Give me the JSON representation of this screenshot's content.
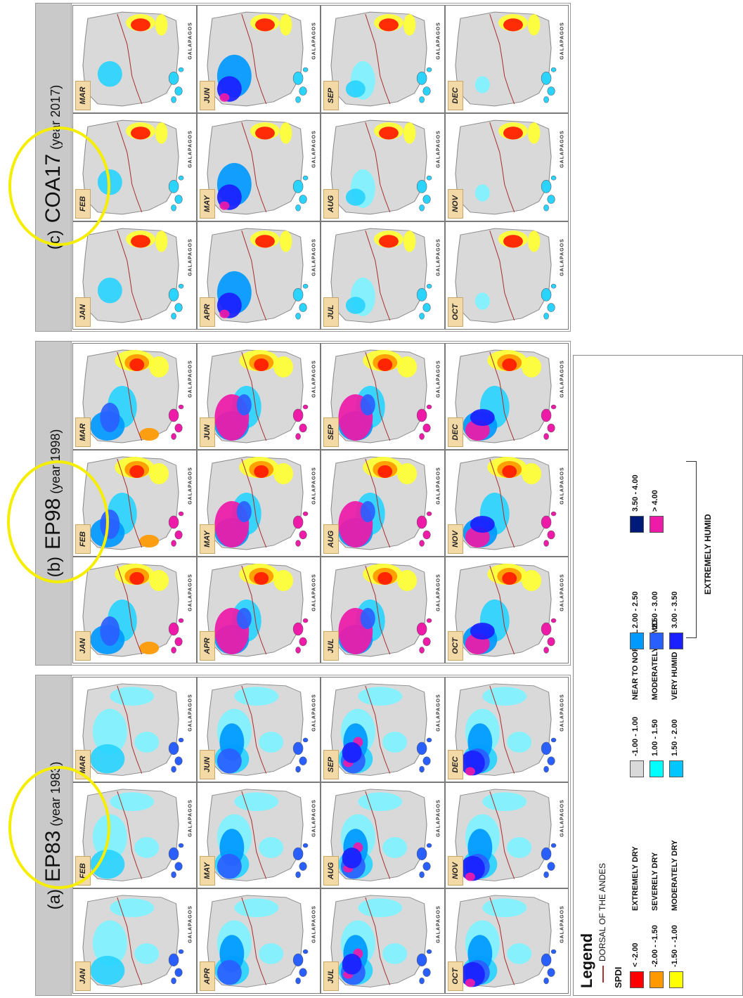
{
  "panels": [
    {
      "tag": "(a)",
      "code": "EP83",
      "year": "(year 1983)"
    },
    {
      "tag": "(b)",
      "code": "EP98",
      "year": "(year 1998)"
    },
    {
      "tag": "(c)",
      "code": "COA17",
      "year": "(year 2017)"
    }
  ],
  "months": [
    "JAN",
    "FEB",
    "MAR",
    "APR",
    "MAY",
    "JUN",
    "JUL",
    "AUG",
    "SEP",
    "OCT",
    "NOV",
    "DEC"
  ],
  "inset_label": "GALAPAGOS",
  "legend": {
    "title": "Legend",
    "dorsal": "DORSAL OF THE ANDES",
    "spdi": "SPDI",
    "items": [
      {
        "range": "< -2.00",
        "label": "EXTREMELY DRY",
        "color": "#ff0000"
      },
      {
        "range": "-2.00 - -1.50",
        "label": "SEVERELY DRY",
        "color": "#ff9900"
      },
      {
        "range": "-1.50 - -1.00",
        "label": "MODERATELY DRY",
        "color": "#ffff00"
      },
      {
        "range": "-1.00 - 1.00",
        "label": "NEAR TO NORMAL",
        "color": "#d9d9d9"
      },
      {
        "range": "1.00 - 1.50",
        "label": "MODERATELY HUMID",
        "color": "#00ffff"
      },
      {
        "range": "1.50 - 2.00",
        "label": "VERY HUMID",
        "color": "#00c8ff"
      },
      {
        "range": "2.00 - 2.50",
        "label": "",
        "color": "#0099ff"
      },
      {
        "range": "2.50 - 3.00",
        "label": "",
        "color": "#2a5fff"
      },
      {
        "range": "3.00 - 3.50",
        "label": "",
        "color": "#1a20ff"
      },
      {
        "range": "3.50 - 4.00",
        "label": "",
        "color": "#001a7a"
      },
      {
        "range": "> 4.00",
        "label": "",
        "color": "#ee1aa8"
      }
    ],
    "extreme_label": "EXTREMELY HUMID"
  }
}
